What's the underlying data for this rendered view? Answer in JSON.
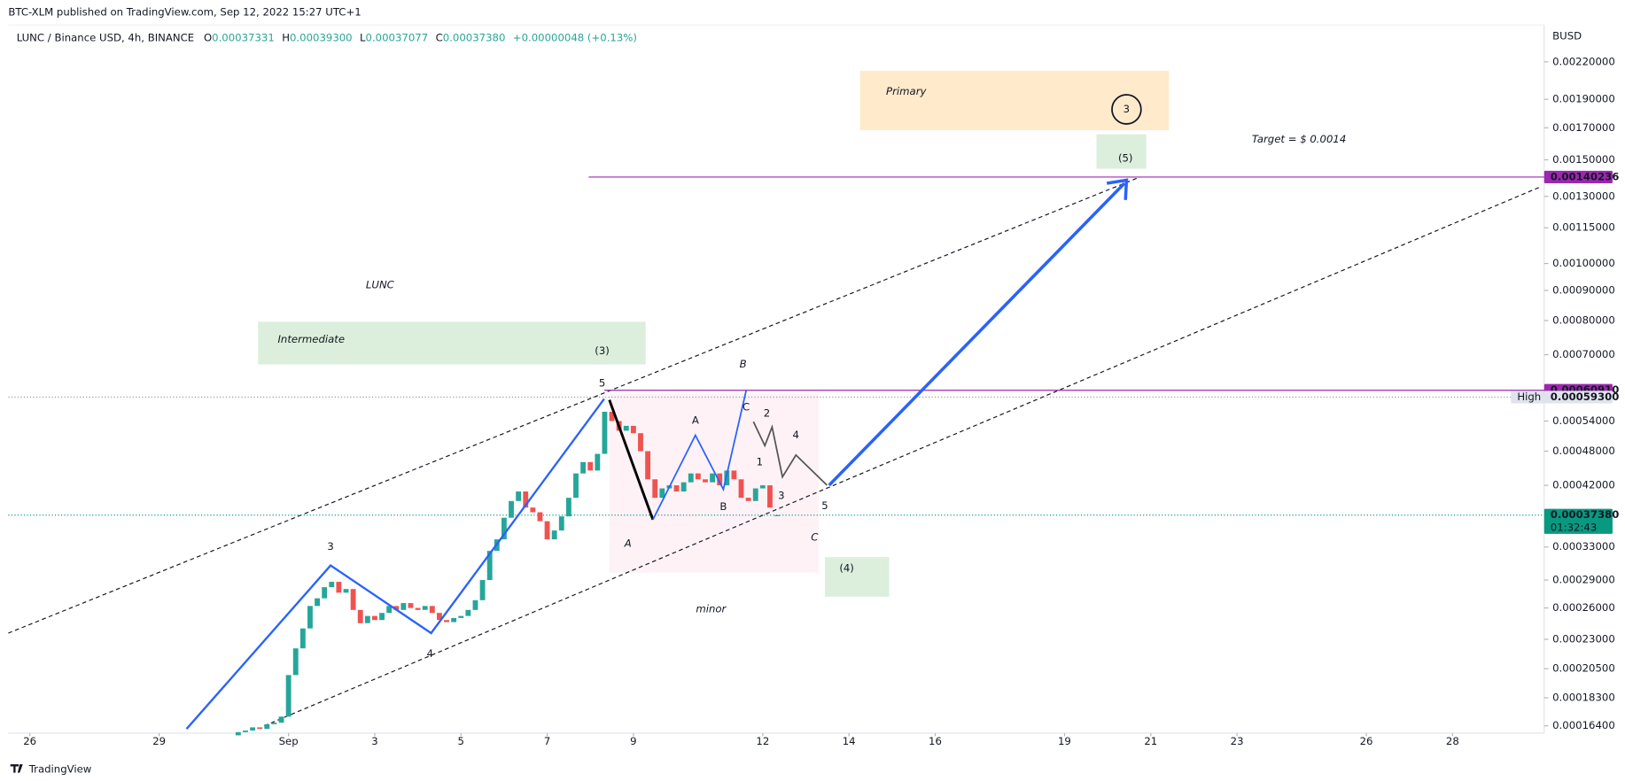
{
  "header": {
    "published": "BTC-XLM published on TradingView.com, Sep 12, 2022 15:27 UTC+1",
    "ohlc": [
      {
        "key": "O",
        "value": "0.00037331"
      },
      {
        "key": "H",
        "value": "0.00039300"
      },
      {
        "key": "L",
        "value": "0.00037077"
      },
      {
        "key": "C",
        "value": "0.00037380"
      }
    ],
    "change": "+0.00000048 (+0.13%)",
    "logo": "TradingView"
  },
  "annotations": {
    "lunc": "LUNC",
    "intermediate": "Intermediate",
    "wave3_paren": "(3)",
    "wave5": "5",
    "wave3": "3",
    "wave4": "4",
    "b": "B",
    "a": "A",
    "c": "C",
    "minor": "minor",
    "primary": "Primary",
    "primary3": "3",
    "wave5_paren": "(5)",
    "wave4_paren": "(4)",
    "target": "Target = $ 0.0014",
    "sub_a": "A",
    "sub_b": "B",
    "sub_c": "C",
    "sub1": "1",
    "sub2": "2",
    "sub3": "3",
    "sub4": "4",
    "sub5": "5"
  },
  "price_labels": [
    {
      "value": 0.00140236,
      "label": "0.00140236",
      "color": "#9c27b0"
    },
    {
      "value": 0.0006091,
      "label": "0.00060910",
      "color": "#9c27b0"
    },
    {
      "value": 0.000593,
      "label": "0.00059300",
      "color": "#e0e3eb",
      "tag": "High"
    },
    {
      "value": 0.0003738,
      "label": "0.00037380",
      "color": "#089981",
      "countdown": "01:32:43"
    }
  ],
  "chart_data": {
    "type": "candlestick",
    "title": "LUNC / Binance USD, 4h, BINANCE",
    "y_label": "BUSD",
    "log_scale": true,
    "grid": false,
    "up_color": "#26a69a",
    "down_color": "#ef5350",
    "ylim": [
      0.000162,
      0.00248
    ],
    "yticks": [
      {
        "value": 0.0022,
        "label": "0.00220000"
      },
      {
        "value": 0.0019,
        "label": "0.00190000"
      },
      {
        "value": 0.0017,
        "label": "0.00170000"
      },
      {
        "value": 0.0015,
        "label": "0.00150000"
      },
      {
        "value": 0.0013,
        "label": "0.00130000"
      },
      {
        "value": 0.00115,
        "label": "0.00115000"
      },
      {
        "value": 0.001,
        "label": "0.00100000"
      },
      {
        "value": 0.0009,
        "label": "0.00090000"
      },
      {
        "value": 0.0008,
        "label": "0.00080000"
      },
      {
        "value": 0.0007,
        "label": "0.00070000"
      },
      {
        "value": 0.00054,
        "label": "0.00054000"
      },
      {
        "value": 0.00048,
        "label": "0.00048000"
      },
      {
        "value": 0.00042,
        "label": "0.00042000"
      },
      {
        "value": 0.00033,
        "label": "0.00033000"
      },
      {
        "value": 0.00029,
        "label": "0.00029000"
      },
      {
        "value": 0.00026,
        "label": "0.00026000"
      },
      {
        "value": 0.00023,
        "label": "0.00023000"
      },
      {
        "value": 0.000205,
        "label": "0.00020500"
      },
      {
        "value": 0.000183,
        "label": "0.00018300"
      },
      {
        "value": 0.000164,
        "label": "0.00016400"
      }
    ],
    "xlim": [
      "2022-08-25T12:00",
      "2022-09-30T03:00"
    ],
    "xticks": [
      {
        "value": "2022-08-26T00:00",
        "label": "26"
      },
      {
        "value": "2022-08-29T00:00",
        "label": "29"
      },
      {
        "value": "2022-09-01T00:00",
        "label": "Sep"
      },
      {
        "value": "2022-09-03T00:00",
        "label": "3"
      },
      {
        "value": "2022-09-05T00:00",
        "label": "5"
      },
      {
        "value": "2022-09-07T00:00",
        "label": "7"
      },
      {
        "value": "2022-09-09T00:00",
        "label": "9"
      },
      {
        "value": "2022-09-12T00:00",
        "label": "12"
      },
      {
        "value": "2022-09-14T00:00",
        "label": "14"
      },
      {
        "value": "2022-09-16T00:00",
        "label": "16"
      },
      {
        "value": "2022-09-19T00:00",
        "label": "19"
      },
      {
        "value": "2022-09-21T00:00",
        "label": "21"
      },
      {
        "value": "2022-09-23T00:00",
        "label": "23"
      },
      {
        "value": "2022-09-26T00:00",
        "label": "26"
      },
      {
        "value": "2022-09-28T00:00",
        "label": "28"
      }
    ],
    "x": [
      "2022-08-30T20:00",
      "2022-08-31T00:00",
      "2022-08-31T04:00",
      "2022-08-31T08:00",
      "2022-08-31T12:00",
      "2022-08-31T16:00",
      "2022-08-31T20:00",
      "2022-09-01T00:00",
      "2022-09-01T04:00",
      "2022-09-01T08:00",
      "2022-09-01T12:00",
      "2022-09-01T16:00",
      "2022-09-01T20:00",
      "2022-09-02T00:00",
      "2022-09-02T04:00",
      "2022-09-02T08:00",
      "2022-09-02T12:00",
      "2022-09-02T16:00",
      "2022-09-02T20:00",
      "2022-09-03T00:00",
      "2022-09-03T04:00",
      "2022-09-03T08:00",
      "2022-09-03T12:00",
      "2022-09-03T16:00",
      "2022-09-03T20:00",
      "2022-09-04T00:00",
      "2022-09-04T04:00",
      "2022-09-04T08:00",
      "2022-09-04T12:00",
      "2022-09-04T16:00",
      "2022-09-04T20:00",
      "2022-09-05T00:00",
      "2022-09-05T04:00",
      "2022-09-05T08:00",
      "2022-09-05T12:00",
      "2022-09-05T16:00",
      "2022-09-05T20:00",
      "2022-09-06T00:00",
      "2022-09-06T04:00",
      "2022-09-06T08:00",
      "2022-09-06T12:00",
      "2022-09-06T16:00",
      "2022-09-06T20:00",
      "2022-09-07T00:00",
      "2022-09-07T04:00",
      "2022-09-07T08:00",
      "2022-09-07T12:00",
      "2022-09-07T16:00",
      "2022-09-07T20:00",
      "2022-09-08T00:00",
      "2022-09-08T04:00",
      "2022-09-08T08:00",
      "2022-09-08T12:00",
      "2022-09-08T16:00",
      "2022-09-08T20:00",
      "2022-09-09T00:00",
      "2022-09-09T04:00",
      "2022-09-09T08:00",
      "2022-09-09T12:00",
      "2022-09-09T16:00",
      "2022-09-09T20:00",
      "2022-09-10T00:00",
      "2022-09-10T04:00",
      "2022-09-10T08:00",
      "2022-09-10T12:00",
      "2022-09-10T16:00",
      "2022-09-10T20:00",
      "2022-09-11T00:00",
      "2022-09-11T04:00",
      "2022-09-11T08:00",
      "2022-09-11T12:00",
      "2022-09-11T16:00",
      "2022-09-11T20:00",
      "2022-09-12T00:00",
      "2022-09-12T04:00",
      "2022-09-12T08:00"
    ],
    "open": [
      0.000158,
      0.00016,
      0.000161,
      0.000163,
      0.000162,
      0.000165,
      0.000166,
      0.00017,
      0.0002,
      0.000222,
      0.00024,
      0.000262,
      0.00027,
      0.000282,
      0.000288,
      0.000276,
      0.00028,
      0.000258,
      0.000245,
      0.000252,
      0.000248,
      0.000255,
      0.000262,
      0.000258,
      0.000265,
      0.00026,
      0.000258,
      0.000262,
      0.000255,
      0.000248,
      0.000246,
      0.00025,
      0.000252,
      0.000258,
      0.000268,
      0.00029,
      0.000325,
      0.00034,
      0.00037,
      0.000395,
      0.00041,
      0.000385,
      0.000378,
      0.000365,
      0.00034,
      0.000352,
      0.000372,
      0.0004,
      0.00044,
      0.00046,
      0.000445,
      0.000475,
      0.00056,
      0.00054,
      0.00052,
      0.00053,
      0.000515,
      0.00048,
      0.00043,
      0.0004,
      0.000415,
      0.00042,
      0.00041,
      0.000425,
      0.00044,
      0.00043,
      0.000425,
      0.00044,
      0.00042,
      0.000445,
      0.00043,
      0.0004,
      0.000395,
      0.000415,
      0.00042,
      0.00037331
    ],
    "close": [
      0.00016,
      0.000161,
      0.000163,
      0.000162,
      0.000165,
      0.000166,
      0.00017,
      0.0002,
      0.000222,
      0.00024,
      0.000262,
      0.00027,
      0.000282,
      0.000288,
      0.000276,
      0.00028,
      0.000258,
      0.000245,
      0.000252,
      0.000248,
      0.000255,
      0.000262,
      0.000258,
      0.000265,
      0.00026,
      0.000258,
      0.000262,
      0.000255,
      0.000248,
      0.000246,
      0.00025,
      0.000252,
      0.000258,
      0.000268,
      0.00029,
      0.000325,
      0.00034,
      0.00037,
      0.000395,
      0.00041,
      0.000385,
      0.000378,
      0.000365,
      0.00034,
      0.000352,
      0.000372,
      0.0004,
      0.00044,
      0.00046,
      0.000445,
      0.000475,
      0.00056,
      0.00054,
      0.00052,
      0.00053,
      0.000515,
      0.00048,
      0.00043,
      0.0004,
      0.000415,
      0.00042,
      0.00041,
      0.000425,
      0.00044,
      0.00043,
      0.000425,
      0.00044,
      0.00042,
      0.000445,
      0.00043,
      0.0004,
      0.000395,
      0.000415,
      0.00042,
      0.000385,
      0.0003738
    ]
  }
}
